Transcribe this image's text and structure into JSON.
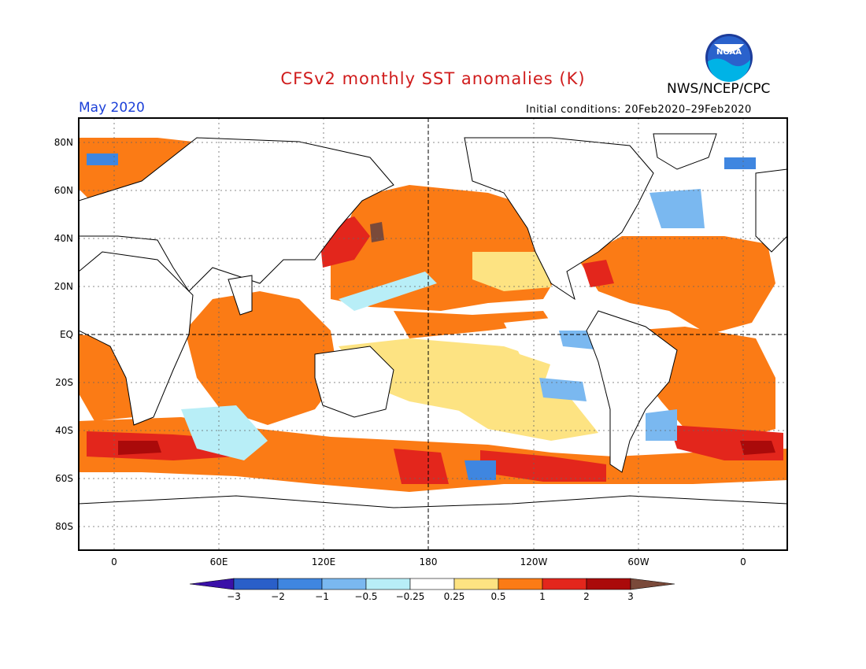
{
  "header": {
    "title": "CFSv2 monthly SST anomalies (K)",
    "agency": "NWS/NCEP/CPC",
    "period": "May 2020",
    "initial_conditions": "Initial conditions: 20Feb2020–29Feb2020",
    "logo_text": "NOAA"
  },
  "axes": {
    "lat_ticks": [
      "80N",
      "60N",
      "40N",
      "20N",
      "EQ",
      "20S",
      "40S",
      "60S",
      "80S"
    ],
    "lon_ticks": [
      "0",
      "60E",
      "120E",
      "180",
      "120W",
      "60W",
      "0"
    ]
  },
  "colorbar": {
    "labels": [
      "−3",
      "−2",
      "−1",
      "−0.5",
      "−0.25",
      "0.25",
      "0.5",
      "1",
      "2",
      "3"
    ],
    "colors": [
      "#3a10a8",
      "#2a5fc9",
      "#3f86e0",
      "#7ab8f0",
      "#b8eef7",
      "#ffffff",
      "#fde382",
      "#fb7b15",
      "#e3261c",
      "#aa0a0a",
      "#7a4a3a"
    ]
  },
  "colors": {
    "land_outline": "#000000",
    "ocean_positive": "#fb7b15",
    "title": "#d01c1c",
    "period": "#1a3fd8"
  }
}
